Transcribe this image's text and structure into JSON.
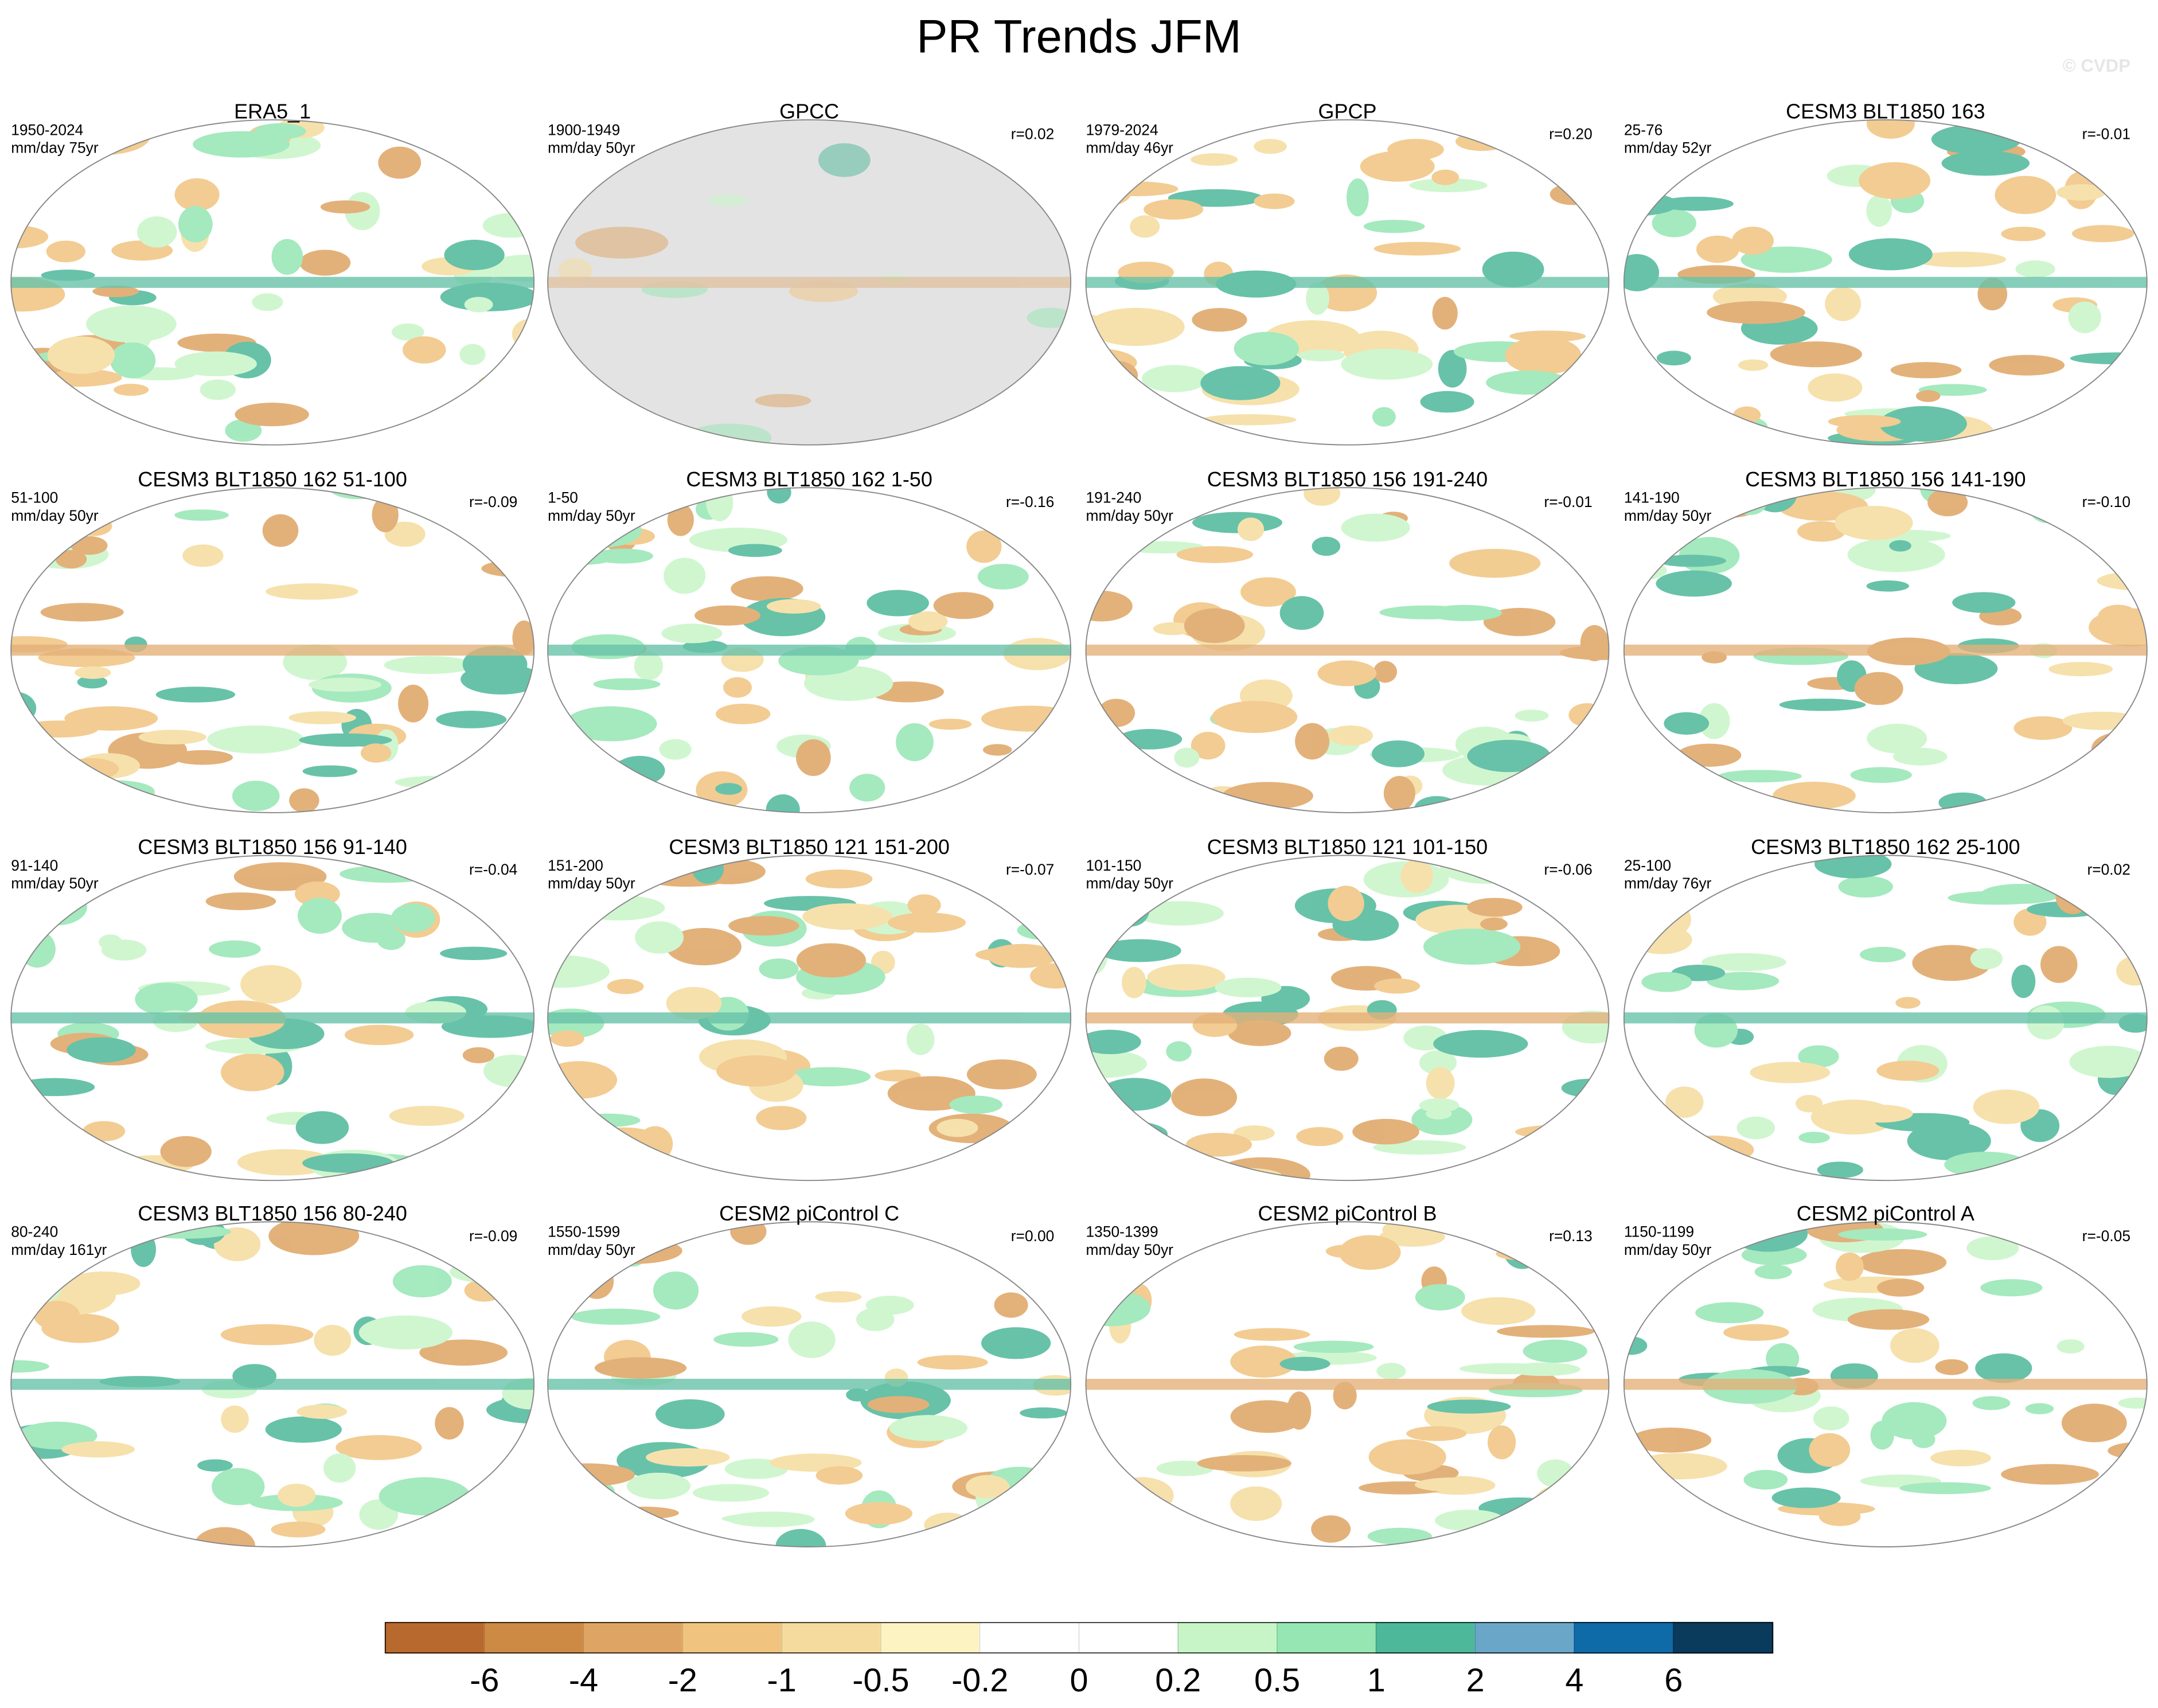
{
  "chart_data": {
    "type": "map-panels",
    "title": "PR Trends JFM",
    "watermark": "© CVDP",
    "panels": [
      {
        "title": "ERA5_1",
        "period": "1950-2024",
        "units": "mm/day 75yr",
        "r": null
      },
      {
        "title": "GPCC",
        "period": "1900-1949",
        "units": "mm/day 50yr",
        "r": "r=0.02"
      },
      {
        "title": "GPCP",
        "period": "1979-2024",
        "units": "mm/day 46yr",
        "r": "r=0.20"
      },
      {
        "title": "CESM3 BLT1850 163",
        "period": "25-76",
        "units": "mm/day 52yr",
        "r": "r=-0.01"
      },
      {
        "title": "CESM3 BLT1850 162 51-100",
        "period": "51-100",
        "units": "mm/day 50yr",
        "r": "r=-0.09"
      },
      {
        "title": "CESM3 BLT1850 162 1-50",
        "period": "1-50",
        "units": "mm/day 50yr",
        "r": "r=-0.16"
      },
      {
        "title": "CESM3 BLT1850 156 191-240",
        "period": "191-240",
        "units": "mm/day 50yr",
        "r": "r=-0.01"
      },
      {
        "title": "CESM3 BLT1850 156 141-190",
        "period": "141-190",
        "units": "mm/day 50yr",
        "r": "r=-0.10"
      },
      {
        "title": "CESM3 BLT1850 156 91-140",
        "period": "91-140",
        "units": "mm/day 50yr",
        "r": "r=-0.04"
      },
      {
        "title": "CESM3 BLT1850 121 151-200",
        "period": "151-200",
        "units": "mm/day 50yr",
        "r": "r=-0.07"
      },
      {
        "title": "CESM3 BLT1850 121 101-150",
        "period": "101-150",
        "units": "mm/day 50yr",
        "r": "r=-0.06"
      },
      {
        "title": "CESM3 BLT1850 162 25-100",
        "period": "25-100",
        "units": "mm/day 76yr",
        "r": "r=0.02"
      },
      {
        "title": "CESM3 BLT1850 156 80-240",
        "period": "80-240",
        "units": "mm/day 161yr",
        "r": "r=-0.09"
      },
      {
        "title": "CESM2 piControl C",
        "period": "1550-1599",
        "units": "mm/day 50yr",
        "r": "r=0.00"
      },
      {
        "title": "CESM2 piControl B",
        "period": "1350-1399",
        "units": "mm/day 50yr",
        "r": "r=0.13"
      },
      {
        "title": "CESM2 piControl A",
        "period": "1150-1199",
        "units": "mm/day 50yr",
        "r": "r=-0.05"
      }
    ],
    "colorbar": {
      "levels": [
        -6,
        -4,
        -2,
        -1,
        -0.5,
        -0.2,
        0,
        0.2,
        0.5,
        1,
        2,
        4,
        6
      ],
      "colors": [
        "#b8692e",
        "#cc8a45",
        "#dea463",
        "#f0c47f",
        "#f5dc9e",
        "#fcf2c2",
        "#ffffff",
        "#ffffff",
        "#c8f5c8",
        "#96e6b4",
        "#4db89a",
        "#6aa6c8",
        "#0f6aa8",
        "#0a3a5c"
      ]
    }
  }
}
